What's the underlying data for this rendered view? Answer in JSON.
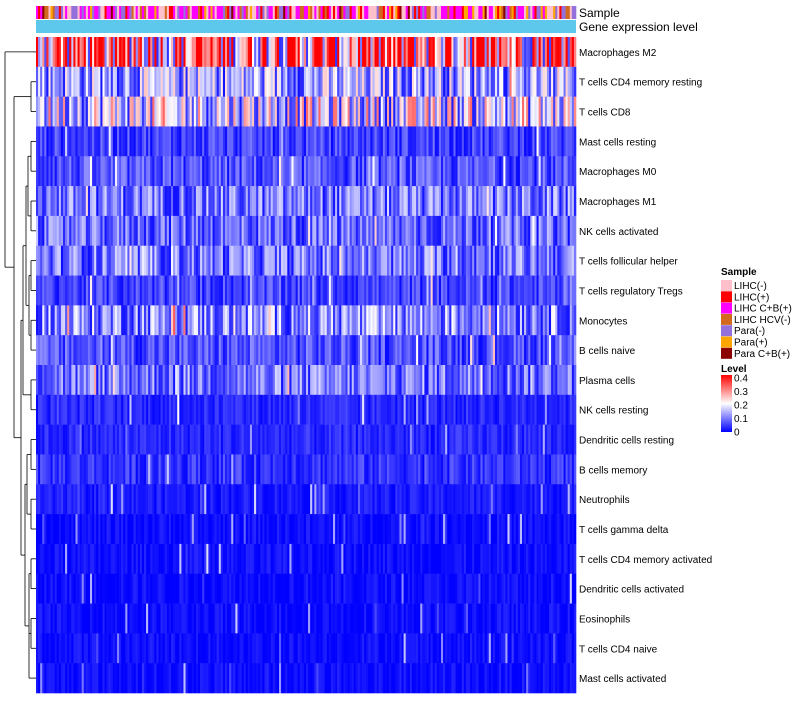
{
  "chart_data": {
    "type": "heatmap",
    "annotation_tracks": [
      "Sample",
      "Gene expression level"
    ],
    "rows": [
      "Macrophages M2",
      "T cells CD4 memory resting",
      "T cells CD8",
      "Mast cells resting",
      "Macrophages M0",
      "Macrophages M1",
      "NK cells activated",
      "T cells follicular helper",
      "T cells regulatory  Tregs",
      "Monocytes",
      "B cells naive",
      "Plasma cells",
      "NK cells resting",
      "Dendritic cells resting",
      "B cells memory",
      "Neutrophils",
      "T cells gamma delta",
      "T cells CD4 memory activated",
      "Dendritic cells activated",
      "Eosinophils",
      "T cells CD4 naive",
      "Mast cells activated"
    ],
    "row_mean_level": [
      0.3,
      0.13,
      0.17,
      0.05,
      0.06,
      0.09,
      0.08,
      0.09,
      0.05,
      0.11,
      0.06,
      0.09,
      0.03,
      0.03,
      0.04,
      0.02,
      0.01,
      0.01,
      0.01,
      0.01,
      0.01,
      0.01
    ],
    "sample_legend": {
      "title": "Sample",
      "entries": [
        {
          "label": "LIHC(-)",
          "color": "#ffc0cb"
        },
        {
          "label": "LIHC(+)",
          "color": "#ff0000"
        },
        {
          "label": "LIHC C+B(+)",
          "color": "#ff00ff"
        },
        {
          "label": "LIHC HCV(-)",
          "color": "#d2691e"
        },
        {
          "label": "Para(-)",
          "color": "#9370db"
        },
        {
          "label": "Para(+)",
          "color": "#ffa500"
        },
        {
          "label": "Para C+B(+)",
          "color": "#8b0000"
        }
      ]
    },
    "level_legend": {
      "title": "Level",
      "ticks": [
        "0.4",
        "0.3",
        "0.2",
        "0.1",
        "0"
      ],
      "range": [
        0,
        0.4
      ],
      "colors": [
        "#0000ff",
        "#ffffff",
        "#ff0000"
      ]
    },
    "gene_expression_color": "#5ec8ec"
  }
}
